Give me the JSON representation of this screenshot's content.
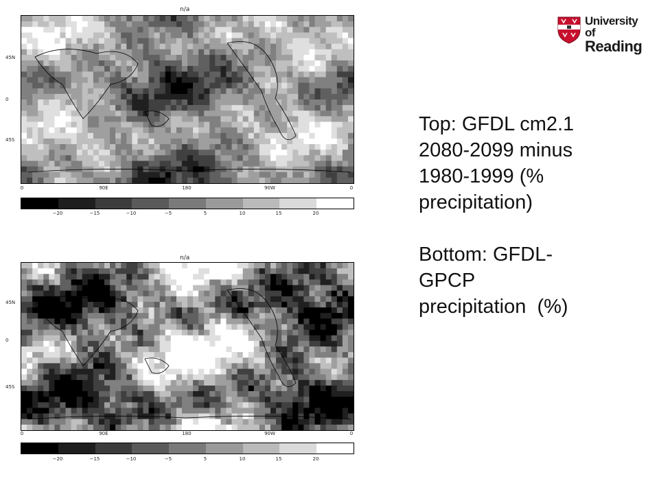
{
  "maps": [
    {
      "id": "top",
      "title": "n/a",
      "lat_labels": [
        "45N",
        "0",
        "45S"
      ],
      "lon_labels": [
        "0",
        "90E",
        "180",
        "90W",
        "0"
      ],
      "colorbar": {
        "labels": [
          "−20",
          "−15",
          "−10",
          "−5",
          "5",
          "10",
          "15",
          "20"
        ],
        "colors": [
          "#000000",
          "#1e1e1e",
          "#3c3c3c",
          "#5a5a5a",
          "#7a7a7a",
          "#9a9a9a",
          "#bababa",
          "#dadada",
          "#ffffff"
        ]
      }
    },
    {
      "id": "bottom",
      "title": "n/a",
      "lat_labels": [
        "45N",
        "0",
        "45S"
      ],
      "lon_labels": [
        "0",
        "90E",
        "180",
        "90W",
        "0"
      ],
      "colorbar": {
        "labels": [
          "−20",
          "−15",
          "−10",
          "−5",
          "5",
          "10",
          "15",
          "20"
        ],
        "colors": [
          "#000000",
          "#1e1e1e",
          "#3c3c3c",
          "#5a5a5a",
          "#7a7a7a",
          "#9a9a9a",
          "#bababa",
          "#dadada",
          "#ffffff"
        ]
      }
    }
  ],
  "logo": {
    "line1": "University of",
    "line2": "Reading",
    "shield_color": "#c8102e"
  },
  "caption": {
    "top_lines": [
      "Top: GFDL cm2.1",
      "2080-2099 minus",
      "1980-1999 (%",
      "precipitation)"
    ],
    "bottom_lines": [
      "Bottom: GFDL-",
      "GPCP",
      "precipitation  (%)"
    ]
  }
}
